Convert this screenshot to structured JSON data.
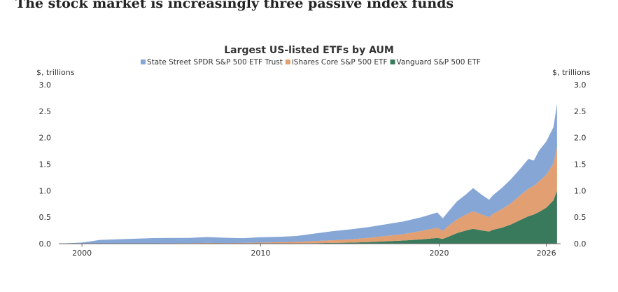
{
  "page": {
    "headline": "The stock market is increasingly three passive index funds"
  },
  "chart_data": {
    "type": "area",
    "stacked": true,
    "title": "Largest US-listed ETFs by AUM",
    "unit_label_left": "$, trillions",
    "unit_label_right": "$, trillions",
    "ylim": [
      0,
      3.0
    ],
    "yticks": [
      "0.0",
      "0.5",
      "1.0",
      "1.5",
      "2.0",
      "2.5",
      "3.0"
    ],
    "xlim": [
      1998.7,
      2026.8
    ],
    "xticks": [
      "2000",
      "2010",
      "2020",
      "2026"
    ],
    "legend_position": "top",
    "x": [
      1998.7,
      2000,
      2001,
      2002,
      2003,
      2004,
      2005,
      2006,
      2007,
      2008,
      2009,
      2010,
      2011,
      2012,
      2013,
      2014,
      2015,
      2016,
      2017,
      2018,
      2019,
      2019.9,
      2020.2,
      2020.5,
      2021,
      2021.5,
      2021.9,
      2022.4,
      2022.8,
      2023,
      2023.5,
      2024,
      2024.5,
      2025,
      2025.3,
      2025.6,
      2026,
      2026.4,
      2026.6
    ],
    "series": [
      {
        "name": "Vanguard S&P 500 ETF",
        "color": "#3a7a5c",
        "values": [
          0,
          0,
          0,
          0,
          0,
          0,
          0,
          0,
          0,
          0,
          0,
          0.001,
          0.003,
          0.006,
          0.01,
          0.015,
          0.02,
          0.03,
          0.045,
          0.06,
          0.08,
          0.11,
          0.09,
          0.13,
          0.2,
          0.25,
          0.28,
          0.25,
          0.23,
          0.26,
          0.3,
          0.36,
          0.44,
          0.52,
          0.55,
          0.6,
          0.68,
          0.82,
          1.0
        ]
      },
      {
        "name": "iShares Core S&P 500 ETF",
        "color": "#e2a072",
        "values": [
          0,
          0.001,
          0.002,
          0.003,
          0.004,
          0.006,
          0.008,
          0.01,
          0.015,
          0.012,
          0.015,
          0.02,
          0.025,
          0.03,
          0.04,
          0.05,
          0.06,
          0.08,
          0.1,
          0.12,
          0.16,
          0.19,
          0.15,
          0.2,
          0.26,
          0.3,
          0.33,
          0.3,
          0.27,
          0.3,
          0.35,
          0.4,
          0.46,
          0.52,
          0.54,
          0.58,
          0.62,
          0.7,
          0.82
        ]
      },
      {
        "name": "State Street SPDR S&P 500 ETF Trust",
        "color": "#86a6d6",
        "values": [
          0,
          0.02,
          0.07,
          0.08,
          0.09,
          0.1,
          0.1,
          0.1,
          0.11,
          0.1,
          0.09,
          0.1,
          0.1,
          0.11,
          0.14,
          0.17,
          0.19,
          0.2,
          0.22,
          0.24,
          0.26,
          0.29,
          0.24,
          0.27,
          0.34,
          0.38,
          0.44,
          0.37,
          0.33,
          0.35,
          0.4,
          0.45,
          0.5,
          0.56,
          0.48,
          0.58,
          0.63,
          0.68,
          0.82
        ]
      }
    ]
  }
}
